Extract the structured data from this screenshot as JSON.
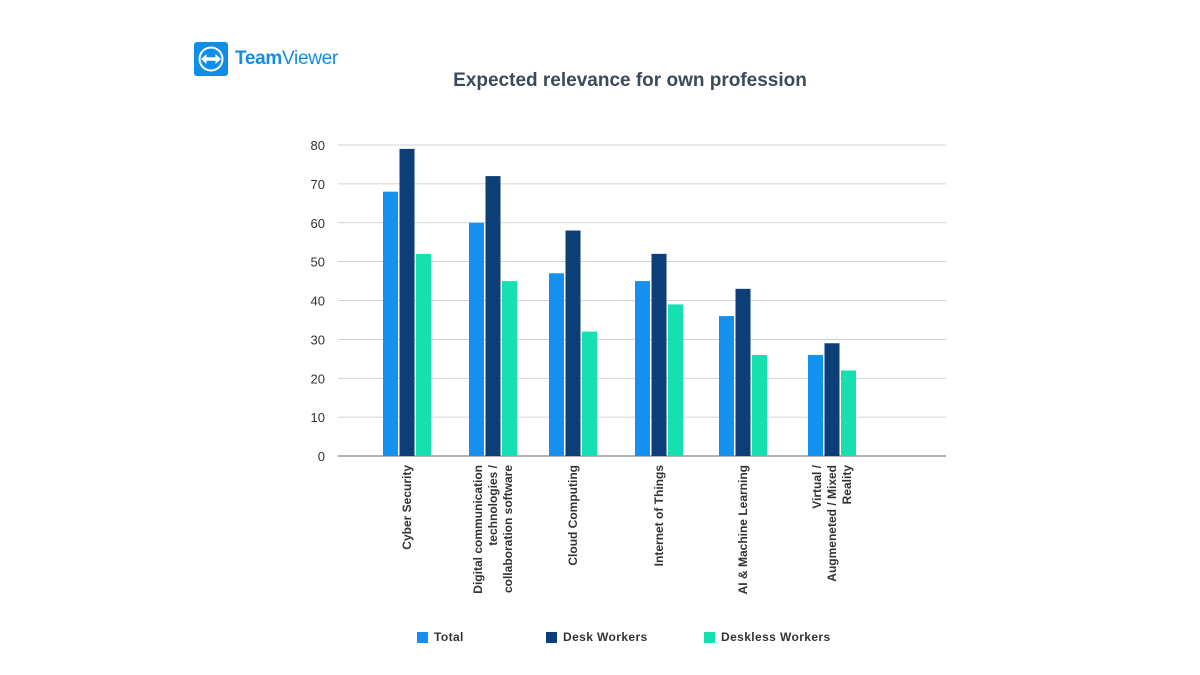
{
  "brand": {
    "name_part1": "Team",
    "name_part2": "Viewer",
    "color": "#0e8ee9",
    "icon": "teamviewer-arrows-icon"
  },
  "chart_data": {
    "type": "bar",
    "title": "Expected relevance for own profession",
    "xlabel": "",
    "ylabel": "",
    "ylim": [
      0,
      80
    ],
    "yticks": [
      0,
      10,
      20,
      30,
      40,
      50,
      60,
      70,
      80
    ],
    "grid": true,
    "legend_position": "bottom",
    "categories": [
      [
        "Cyber Security"
      ],
      [
        "Digital communication",
        "technologies /",
        "collaboration software"
      ],
      [
        "Cloud Computing"
      ],
      [
        "Internet of Things"
      ],
      [
        "AI & Machine Learning"
      ],
      [
        "Virtual /",
        "Augmeneted / Mixed",
        "Reality"
      ]
    ],
    "series": [
      {
        "name": "Total",
        "color": "#1491f0",
        "values": [
          68,
          60,
          47,
          45,
          36,
          26
        ]
      },
      {
        "name": "Desk Workers",
        "color": "#0c3e78",
        "values": [
          79,
          72,
          58,
          52,
          43,
          29
        ]
      },
      {
        "name": "Deskless Workers",
        "color": "#16e0b0",
        "values": [
          52,
          45,
          32,
          39,
          26,
          22
        ]
      }
    ]
  }
}
